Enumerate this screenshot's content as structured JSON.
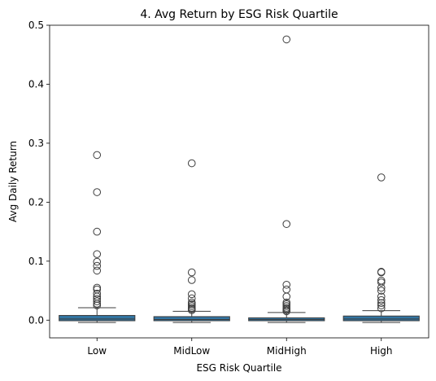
{
  "chart_data": {
    "type": "box",
    "title": "4. Avg Return by ESG Risk Quartile",
    "xlabel": "ESG Risk Quartile",
    "ylabel": "Avg Daily Return",
    "categories": [
      "Low",
      "MidLow",
      "MidHigh",
      "High"
    ],
    "ylim": [
      -0.03,
      0.5
    ],
    "yticks": [
      0.0,
      0.1,
      0.2,
      0.3,
      0.4,
      0.5
    ],
    "ytick_labels": [
      "0.0",
      "0.1",
      "0.2",
      "0.3",
      "0.4",
      "0.5"
    ],
    "grid": false,
    "box_color": "#3274a1",
    "outlier_marker": "open-circle",
    "boxes": [
      {
        "category": "Low",
        "whisker_low": -0.004,
        "q1": -0.001,
        "median": 0.002,
        "q3": 0.008,
        "whisker_high": 0.021,
        "outliers": [
          0.28,
          0.217,
          0.15,
          0.112,
          0.099,
          0.092,
          0.084,
          0.055,
          0.052,
          0.045,
          0.04,
          0.036,
          0.032,
          0.028,
          0.025
        ]
      },
      {
        "category": "MidLow",
        "whisker_low": -0.004,
        "q1": -0.001,
        "median": 0.001,
        "q3": 0.006,
        "whisker_high": 0.015,
        "outliers": [
          0.266,
          0.081,
          0.068,
          0.044,
          0.037,
          0.03,
          0.027,
          0.024,
          0.021,
          0.019,
          0.017
        ]
      },
      {
        "category": "MidHigh",
        "whisker_low": -0.004,
        "q1": -0.001,
        "median": 0.001,
        "q3": 0.004,
        "whisker_high": 0.013,
        "outliers": [
          0.476,
          0.163,
          0.06,
          0.052,
          0.04,
          0.03,
          0.027,
          0.024,
          0.021,
          0.019,
          0.017,
          0.015
        ]
      },
      {
        "category": "High",
        "whisker_low": -0.004,
        "q1": -0.001,
        "median": 0.002,
        "q3": 0.007,
        "whisker_high": 0.016,
        "outliers": [
          0.242,
          0.082,
          0.081,
          0.067,
          0.064,
          0.055,
          0.05,
          0.04,
          0.034,
          0.029,
          0.025,
          0.02
        ]
      }
    ]
  }
}
